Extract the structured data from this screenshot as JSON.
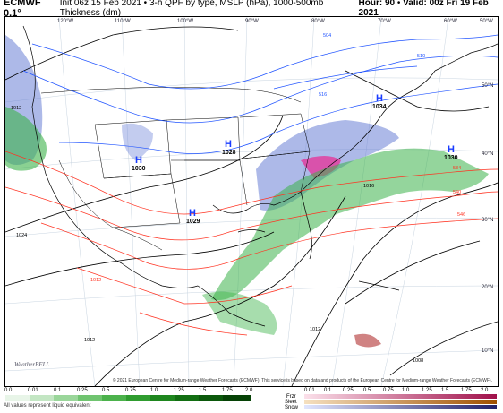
{
  "header": {
    "model": "ECMWF 0.1°",
    "description": "Init 06z 15 Feb 2021 • 3-h QPF by type, MSLP (hPa), 1000-500mb Thickness (dm)",
    "hour_label": "Hour: 90",
    "valid_label": "Valid: 00z Fri 19 Feb 2021"
  },
  "map": {
    "longitudes": [
      "120°W",
      "110°W",
      "100°W",
      "90°W",
      "80°W",
      "70°W",
      "60°W",
      "50°W"
    ],
    "latitudes": [
      "50°N",
      "40°N",
      "30°N",
      "20°N",
      "10°N"
    ],
    "highs": [
      {
        "label": "H",
        "value": "1030"
      },
      {
        "label": "H",
        "value": "1028"
      },
      {
        "label": "H",
        "value": "1029"
      },
      {
        "label": "H",
        "value": "1034"
      },
      {
        "label": "H",
        "value": "1030"
      }
    ],
    "isobar_labels": [
      "1012",
      "1024",
      "1012",
      "1012",
      "1012",
      "1008",
      "1016",
      "516",
      "534",
      "540",
      "546",
      "504",
      "510"
    ],
    "colors": {
      "coast": "#000000",
      "isobar": "#000000",
      "thickness_cold": "#2255ff",
      "thickness_warm": "#ff3322",
      "rain": "#3cb34a",
      "snow": "#6a7fd6",
      "mix": "#e040a0"
    }
  },
  "legend": {
    "rain_ticks": [
      "0.0",
      "0.01",
      "0.1",
      "0.25",
      "0.5",
      "0.75",
      "1.0",
      "1.25",
      "1.5",
      "1.75",
      "2.0"
    ],
    "mixed_ticks": [
      "0.01",
      "0.1",
      "0.25",
      "0.5",
      "0.75",
      "1.0",
      "1.25",
      "1.5",
      "1.75",
      "2.0"
    ],
    "ptype_labels": [
      "Frzr",
      "Sleet",
      "Snow"
    ],
    "footnote": "All values represent liquid equivalent",
    "copyright": "© 2021 European Centre for Medium-range Weather Forecasts (ECMWF). This service is based on data and products of the European Centre for Medium-range Weather Forecasts (ECMWF).",
    "logo": "WeatherBELL"
  }
}
